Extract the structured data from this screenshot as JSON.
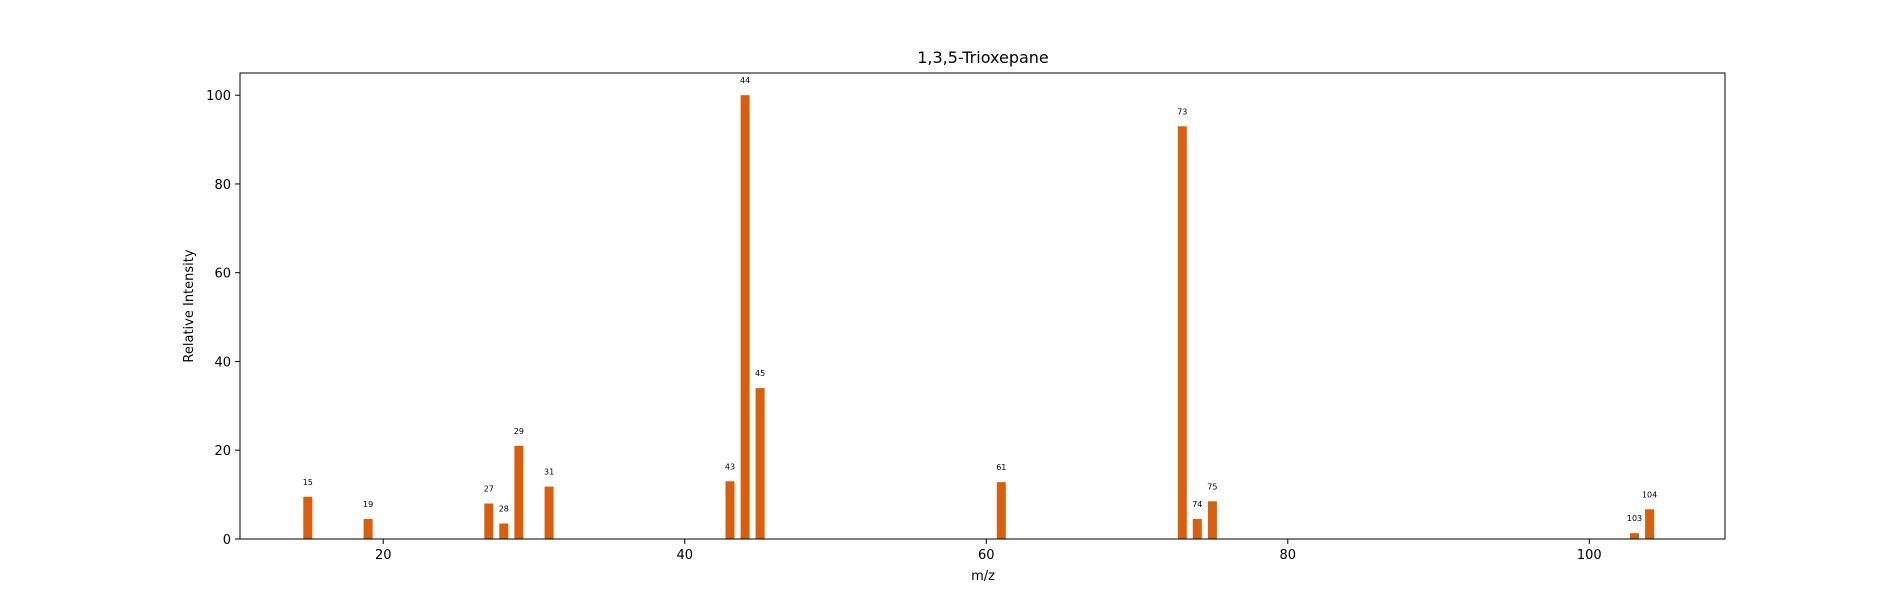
{
  "chart_data": {
    "type": "bar",
    "title": "1,3,5-Trioxepane",
    "xlabel": "m/z",
    "ylabel": "Relative Intensity",
    "xlim": [
      10.5,
      109
    ],
    "ylim": [
      0,
      105
    ],
    "xticks": [
      20,
      40,
      60,
      80,
      100
    ],
    "yticks": [
      0,
      20,
      40,
      60,
      80,
      100
    ],
    "bar_color": "#d95f0e",
    "x": [
      15,
      19,
      27,
      28,
      29,
      31,
      43,
      44,
      45,
      61,
      73,
      74,
      75,
      103,
      104
    ],
    "values": [
      9.5,
      4.5,
      8,
      3.5,
      21,
      11.8,
      13,
      100,
      34,
      12.8,
      93,
      4.5,
      8.5,
      1.3,
      6.7
    ],
    "data_labels": [
      "15",
      "19",
      "27",
      "28",
      "29",
      "31",
      "43",
      "44",
      "45",
      "61",
      "73",
      "74",
      "75",
      "103",
      "104"
    ],
    "grid": false,
    "legend": "none"
  }
}
